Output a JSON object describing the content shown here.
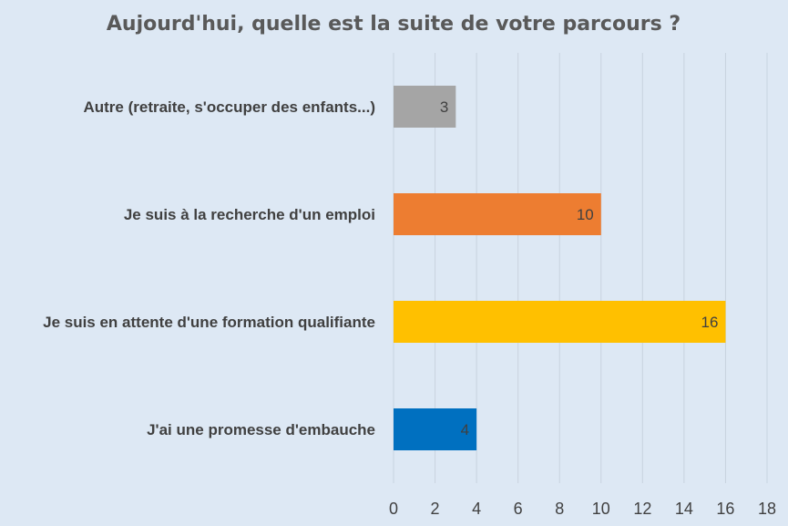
{
  "chart_data": {
    "type": "bar",
    "orientation": "horizontal",
    "title": "Aujourd'hui, quelle est la suite de votre parcours ?",
    "categories": [
      "Autre (retraite, s'occuper des enfants...)",
      "Je suis à la recherche d'un emploi",
      "Je suis en attente d'une formation qualifiante",
      "J'ai une promesse d'embauche"
    ],
    "values": [
      3,
      10,
      16,
      4
    ],
    "colors": [
      "#a5a5a5",
      "#ed7d31",
      "#ffc000",
      "#0070c0"
    ],
    "xlim": [
      0,
      18
    ],
    "xticks": [
      0,
      2,
      4,
      6,
      8,
      10,
      12,
      14,
      16,
      18
    ],
    "grid": true,
    "data_labels": true,
    "legend": "none"
  }
}
